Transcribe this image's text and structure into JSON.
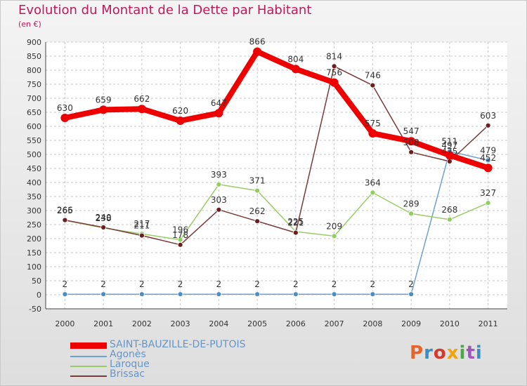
{
  "header": {
    "title": "Evolution du Montant de la Dette par Habitant",
    "subtitle": "(en €)"
  },
  "logo": {
    "text": "Proxiti",
    "colors": [
      "#e8632a",
      "#3c8dc5",
      "#d33a2c",
      "#f0a30a",
      "#4ba84b",
      "#9b59b6",
      "#3c8dc5"
    ]
  },
  "chart_data": {
    "type": "line",
    "categories": [
      "2000",
      "2001",
      "2002",
      "2003",
      "2004",
      "2005",
      "2006",
      "2007",
      "2008",
      "2009",
      "2010",
      "2011"
    ],
    "ylim": [
      -50,
      900
    ],
    "yticks": [
      -50,
      0,
      50,
      100,
      150,
      200,
      250,
      300,
      350,
      400,
      450,
      500,
      550,
      600,
      650,
      700,
      750,
      800,
      850,
      900
    ],
    "grid": true,
    "legend_position": "bottom-left",
    "series": [
      {
        "name": "SAINT-BAUZILLE-DE-PUTOIS",
        "color": "#ee0000",
        "values": [
          630,
          659,
          662,
          620,
          647,
          866,
          804,
          756,
          575,
          547,
          497,
          452
        ]
      },
      {
        "name": "Agonès",
        "color": "#6fa0d2",
        "values": [
          2,
          2,
          2,
          2,
          2,
          2,
          2,
          2,
          2,
          2,
          511,
          479
        ]
      },
      {
        "name": "Laroque",
        "color": "#99cc66",
        "values": [
          265,
          238,
          217,
          196,
          393,
          371,
          225,
          209,
          364,
          289,
          268,
          327
        ]
      },
      {
        "name": "Brissac",
        "color": "#7a3a3a",
        "values": [
          266,
          240,
          211,
          178,
          303,
          262,
          221,
          814,
          746,
          508,
          475,
          603
        ]
      }
    ]
  }
}
